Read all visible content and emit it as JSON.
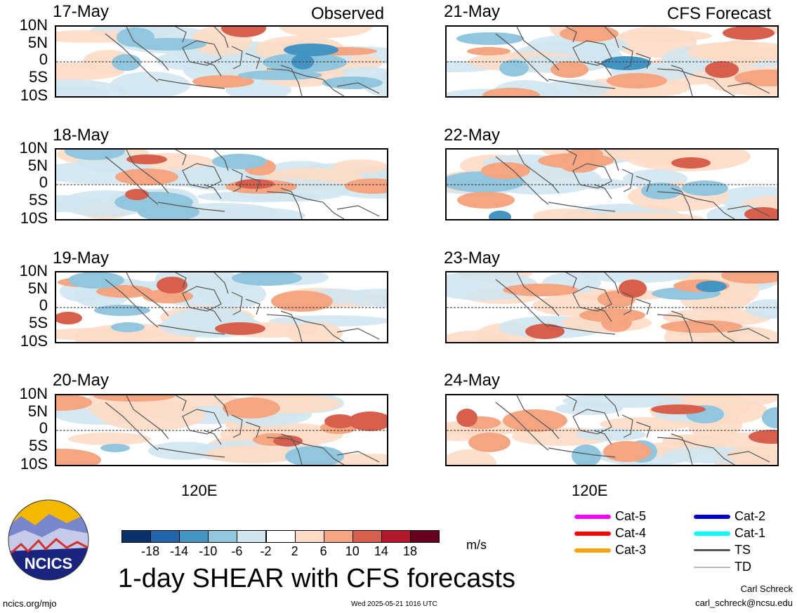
{
  "panels_left_header": "Observed",
  "panels_right_header": "CFS Forecast",
  "observed_dates": [
    "17-May",
    "18-May",
    "19-May",
    "20-May"
  ],
  "forecast_dates": [
    "21-May",
    "22-May",
    "23-May",
    "24-May"
  ],
  "lat_labels": [
    "10N",
    "5N",
    "0",
    "5S",
    "10S"
  ],
  "lon_label": "120E",
  "colorbar": {
    "ticks": [
      "-18",
      "-14",
      "-10",
      "-6",
      "-2",
      "2",
      "6",
      "10",
      "14",
      "18"
    ],
    "colors": [
      "#08306b",
      "#2166ac",
      "#4393c3",
      "#92c5de",
      "#d1e5f0",
      "#ffffff",
      "#fddbc7",
      "#f4a582",
      "#d6604d",
      "#b2182b",
      "#67001f"
    ],
    "unit": "m/s"
  },
  "legend": {
    "items": [
      {
        "label": "Cat-5",
        "color": "#ff00ff"
      },
      {
        "label": "Cat-4",
        "color": "#ff0000"
      },
      {
        "label": "Cat-3",
        "color": "#ffa500"
      },
      {
        "label": "Cat-2",
        "color": "#0000cc"
      },
      {
        "label": "Cat-1",
        "color": "#00ffff"
      },
      {
        "label": "TS",
        "color": "#555555"
      },
      {
        "label": "TD",
        "color": "#bbbbbb"
      }
    ]
  },
  "logo_text": "NCICS",
  "title": "1-day SHEAR with CFS forecasts",
  "footer": {
    "url": "ncics.org/mjo",
    "timestamp": "Wed 2025-05-21 1016 UTC",
    "author": "Carl Schreck",
    "email": "carl_schreck@ncsu.edu"
  }
}
